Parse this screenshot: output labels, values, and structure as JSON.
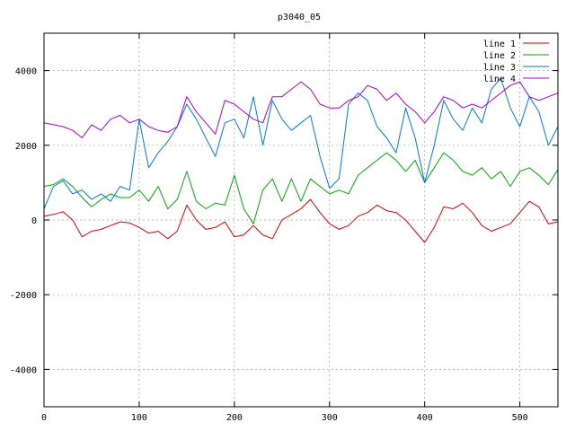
{
  "chart_data": {
    "type": "line",
    "title": "p3040_05",
    "xlabel": "",
    "ylabel": "",
    "xlim": [
      0,
      540
    ],
    "ylim": [
      -5000,
      5000
    ],
    "x_ticks": [
      0,
      100,
      200,
      300,
      400,
      500
    ],
    "y_ticks": [
      -4000,
      -2000,
      0,
      2000,
      4000
    ],
    "grid": true,
    "legend_position": "top-right",
    "series": [
      {
        "name": "line 1",
        "color": "#dd0000",
        "points": [
          [
            0,
            100
          ],
          [
            10,
            150
          ],
          [
            20,
            220
          ],
          [
            30,
            0
          ],
          [
            40,
            -450
          ],
          [
            50,
            -300
          ],
          [
            60,
            -250
          ],
          [
            70,
            -150
          ],
          [
            80,
            -50
          ],
          [
            90,
            -80
          ],
          [
            100,
            -200
          ],
          [
            110,
            -350
          ],
          [
            120,
            -300
          ],
          [
            130,
            -500
          ],
          [
            140,
            -300
          ],
          [
            150,
            400
          ],
          [
            160,
            0
          ],
          [
            170,
            -250
          ],
          [
            180,
            -200
          ],
          [
            190,
            -50
          ],
          [
            200,
            -450
          ],
          [
            210,
            -400
          ],
          [
            220,
            -150
          ],
          [
            230,
            -400
          ],
          [
            240,
            -500
          ],
          [
            250,
            0
          ],
          [
            260,
            150
          ],
          [
            270,
            300
          ],
          [
            280,
            550
          ],
          [
            290,
            200
          ],
          [
            300,
            -100
          ],
          [
            310,
            -250
          ],
          [
            320,
            -150
          ],
          [
            330,
            100
          ],
          [
            340,
            200
          ],
          [
            350,
            400
          ],
          [
            360,
            250
          ],
          [
            370,
            200
          ],
          [
            380,
            0
          ],
          [
            390,
            -300
          ],
          [
            400,
            -600
          ],
          [
            410,
            -200
          ],
          [
            420,
            350
          ],
          [
            430,
            300
          ],
          [
            440,
            450
          ],
          [
            450,
            200
          ],
          [
            460,
            -150
          ],
          [
            470,
            -300
          ],
          [
            480,
            -200
          ],
          [
            490,
            -100
          ],
          [
            500,
            200
          ],
          [
            510,
            500
          ],
          [
            520,
            350
          ],
          [
            530,
            -100
          ],
          [
            540,
            -50
          ]
        ]
      },
      {
        "name": "line 2",
        "color": "#00aa00",
        "points": [
          [
            0,
            900
          ],
          [
            10,
            950
          ],
          [
            20,
            1100
          ],
          [
            30,
            900
          ],
          [
            40,
            600
          ],
          [
            50,
            350
          ],
          [
            60,
            550
          ],
          [
            70,
            700
          ],
          [
            80,
            600
          ],
          [
            90,
            600
          ],
          [
            100,
            800
          ],
          [
            110,
            500
          ],
          [
            120,
            900
          ],
          [
            130,
            300
          ],
          [
            140,
            550
          ],
          [
            150,
            1300
          ],
          [
            160,
            500
          ],
          [
            170,
            300
          ],
          [
            180,
            450
          ],
          [
            190,
            400
          ],
          [
            200,
            1200
          ],
          [
            210,
            300
          ],
          [
            220,
            -100
          ],
          [
            230,
            800
          ],
          [
            240,
            1100
          ],
          [
            250,
            500
          ],
          [
            260,
            1100
          ],
          [
            270,
            500
          ],
          [
            280,
            1100
          ],
          [
            290,
            900
          ],
          [
            300,
            700
          ],
          [
            310,
            800
          ],
          [
            320,
            700
          ],
          [
            330,
            1200
          ],
          [
            340,
            1400
          ],
          [
            350,
            1600
          ],
          [
            360,
            1800
          ],
          [
            370,
            1600
          ],
          [
            380,
            1300
          ],
          [
            390,
            1600
          ],
          [
            400,
            1000
          ],
          [
            410,
            1400
          ],
          [
            420,
            1800
          ],
          [
            430,
            1600
          ],
          [
            440,
            1300
          ],
          [
            450,
            1200
          ],
          [
            460,
            1400
          ],
          [
            470,
            1100
          ],
          [
            480,
            1300
          ],
          [
            490,
            900
          ],
          [
            500,
            1300
          ],
          [
            510,
            1400
          ],
          [
            520,
            1200
          ],
          [
            530,
            950
          ],
          [
            540,
            1350
          ]
        ]
      },
      {
        "name": "line 3",
        "color": "#0077ee",
        "points": [
          [
            0,
            300
          ],
          [
            10,
            900
          ],
          [
            20,
            1050
          ],
          [
            30,
            700
          ],
          [
            40,
            800
          ],
          [
            50,
            550
          ],
          [
            60,
            700
          ],
          [
            70,
            500
          ],
          [
            80,
            900
          ],
          [
            90,
            800
          ],
          [
            100,
            2700
          ],
          [
            110,
            1400
          ],
          [
            120,
            1800
          ],
          [
            130,
            2100
          ],
          [
            140,
            2500
          ],
          [
            150,
            3100
          ],
          [
            160,
            2700
          ],
          [
            170,
            2200
          ],
          [
            180,
            1700
          ],
          [
            190,
            2600
          ],
          [
            200,
            2700
          ],
          [
            210,
            2200
          ],
          [
            220,
            3300
          ],
          [
            230,
            2000
          ],
          [
            240,
            3200
          ],
          [
            250,
            2700
          ],
          [
            260,
            2400
          ],
          [
            270,
            2600
          ],
          [
            280,
            2800
          ],
          [
            290,
            1700
          ],
          [
            300,
            850
          ],
          [
            310,
            1100
          ],
          [
            320,
            3100
          ],
          [
            330,
            3400
          ],
          [
            340,
            3200
          ],
          [
            350,
            2500
          ],
          [
            360,
            2200
          ],
          [
            370,
            1800
          ],
          [
            380,
            3000
          ],
          [
            390,
            2200
          ],
          [
            400,
            1000
          ],
          [
            410,
            2000
          ],
          [
            420,
            3200
          ],
          [
            430,
            2700
          ],
          [
            440,
            2400
          ],
          [
            450,
            3000
          ],
          [
            460,
            2600
          ],
          [
            470,
            3500
          ],
          [
            480,
            3800
          ],
          [
            490,
            3000
          ],
          [
            500,
            2500
          ],
          [
            510,
            3300
          ],
          [
            520,
            2900
          ],
          [
            530,
            2000
          ],
          [
            540,
            2500
          ]
        ]
      },
      {
        "name": "line 4",
        "color": "#aa00cc",
        "points": [
          [
            0,
            2600
          ],
          [
            10,
            2550
          ],
          [
            20,
            2500
          ],
          [
            30,
            2400
          ],
          [
            40,
            2200
          ],
          [
            50,
            2550
          ],
          [
            60,
            2400
          ],
          [
            70,
            2700
          ],
          [
            80,
            2800
          ],
          [
            90,
            2600
          ],
          [
            100,
            2700
          ],
          [
            110,
            2500
          ],
          [
            120,
            2400
          ],
          [
            130,
            2350
          ],
          [
            140,
            2500
          ],
          [
            150,
            3300
          ],
          [
            160,
            2900
          ],
          [
            170,
            2600
          ],
          [
            180,
            2300
          ],
          [
            190,
            3200
          ],
          [
            200,
            3100
          ],
          [
            210,
            2900
          ],
          [
            220,
            2700
          ],
          [
            230,
            2600
          ],
          [
            240,
            3300
          ],
          [
            250,
            3300
          ],
          [
            260,
            3500
          ],
          [
            270,
            3700
          ],
          [
            280,
            3500
          ],
          [
            290,
            3100
          ],
          [
            300,
            3000
          ],
          [
            310,
            3000
          ],
          [
            320,
            3200
          ],
          [
            330,
            3300
          ],
          [
            340,
            3600
          ],
          [
            350,
            3500
          ],
          [
            360,
            3200
          ],
          [
            370,
            3400
          ],
          [
            380,
            3100
          ],
          [
            390,
            2900
          ],
          [
            400,
            2600
          ],
          [
            410,
            2900
          ],
          [
            420,
            3300
          ],
          [
            430,
            3200
          ],
          [
            440,
            3000
          ],
          [
            450,
            3100
          ],
          [
            460,
            3000
          ],
          [
            470,
            3200
          ],
          [
            480,
            3400
          ],
          [
            490,
            3600
          ],
          [
            500,
            3700
          ],
          [
            510,
            3300
          ],
          [
            520,
            3200
          ],
          [
            530,
            3300
          ],
          [
            540,
            3400
          ]
        ]
      }
    ]
  }
}
